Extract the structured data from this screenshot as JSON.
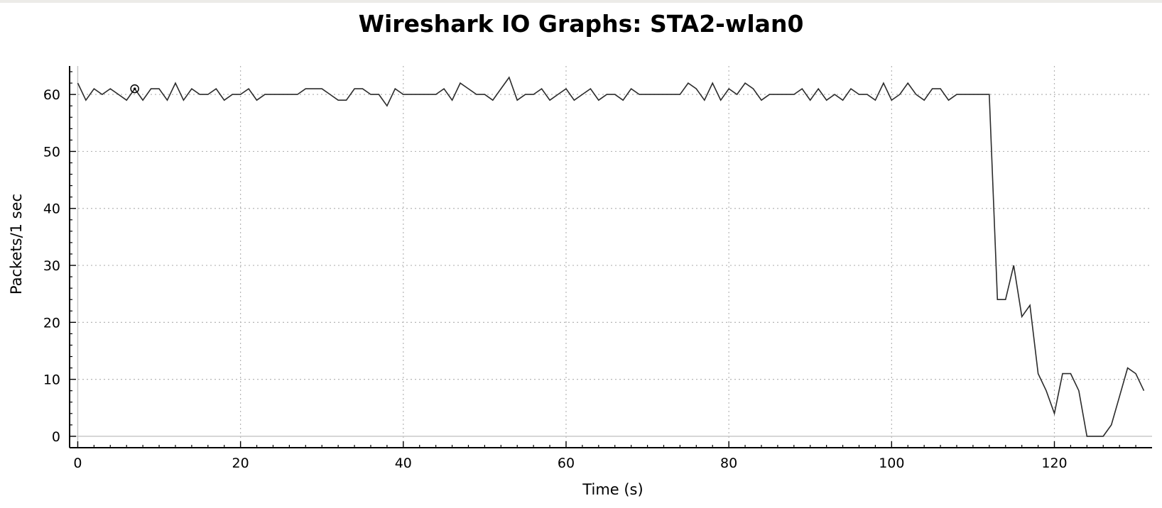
{
  "chart_data": {
    "type": "line",
    "title": "Wireshark IO Graphs: STA2-wlan0",
    "xlabel": "Time (s)",
    "ylabel": "Packets/1 sec",
    "xlim": [
      -1,
      132
    ],
    "ylim": [
      -2,
      65
    ],
    "x_ticks": [
      0,
      20,
      40,
      60,
      80,
      100,
      120
    ],
    "y_ticks": [
      0,
      10,
      20,
      30,
      40,
      50,
      60
    ],
    "grid": true,
    "grid_style": "dotted",
    "line_color": "#2b2b2b",
    "marker": {
      "x": 7,
      "y": 61
    },
    "series": [
      {
        "x": [
          0,
          1,
          2,
          3,
          4,
          5,
          6,
          7,
          8,
          9,
          10,
          11,
          12,
          13,
          14,
          15,
          16,
          17,
          18,
          19,
          20,
          21,
          22,
          23,
          24,
          25,
          26,
          27,
          28,
          29,
          30,
          31,
          32,
          33,
          34,
          35,
          36,
          37,
          38,
          39,
          40,
          41,
          42,
          43,
          44,
          45,
          46,
          47,
          48,
          49,
          50,
          51,
          52,
          53,
          54,
          55,
          56,
          57,
          58,
          59,
          60,
          61,
          62,
          63,
          64,
          65,
          66,
          67,
          68,
          69,
          70,
          71,
          72,
          73,
          74,
          75,
          76,
          77,
          78,
          79,
          80,
          81,
          82,
          83,
          84,
          85,
          86,
          87,
          88,
          89,
          90,
          91,
          92,
          93,
          94,
          95,
          96,
          97,
          98,
          99,
          100,
          101,
          102,
          103,
          104,
          105,
          106,
          107,
          108,
          109,
          110,
          111,
          112,
          113,
          114,
          115,
          116,
          117,
          118,
          119,
          120,
          121,
          122,
          123,
          124,
          125,
          126,
          127,
          128,
          129,
          130,
          131
        ],
        "values": [
          62,
          59,
          61,
          60,
          61,
          60,
          59,
          61,
          59,
          61,
          61,
          59,
          62,
          59,
          61,
          60,
          60,
          61,
          59,
          60,
          60,
          61,
          59,
          60,
          60,
          60,
          60,
          60,
          61,
          61,
          61,
          60,
          59,
          59,
          61,
          61,
          60,
          60,
          58,
          61,
          60,
          60,
          60,
          60,
          60,
          61,
          59,
          62,
          61,
          60,
          60,
          59,
          61,
          63,
          59,
          60,
          60,
          61,
          59,
          60,
          61,
          59,
          60,
          61,
          59,
          60,
          60,
          59,
          61,
          60,
          60,
          60,
          60,
          60,
          60,
          62,
          61,
          59,
          62,
          59,
          61,
          60,
          62,
          61,
          59,
          60,
          60,
          60,
          60,
          61,
          59,
          61,
          59,
          60,
          59,
          61,
          60,
          60,
          59,
          62,
          59,
          60,
          62,
          60,
          59,
          61,
          61,
          59,
          60,
          60,
          60,
          60,
          60,
          24,
          24,
          30,
          21,
          23,
          11,
          8,
          4,
          11,
          11,
          8,
          0,
          0,
          0,
          2,
          7,
          12,
          11,
          8
        ]
      }
    ]
  }
}
